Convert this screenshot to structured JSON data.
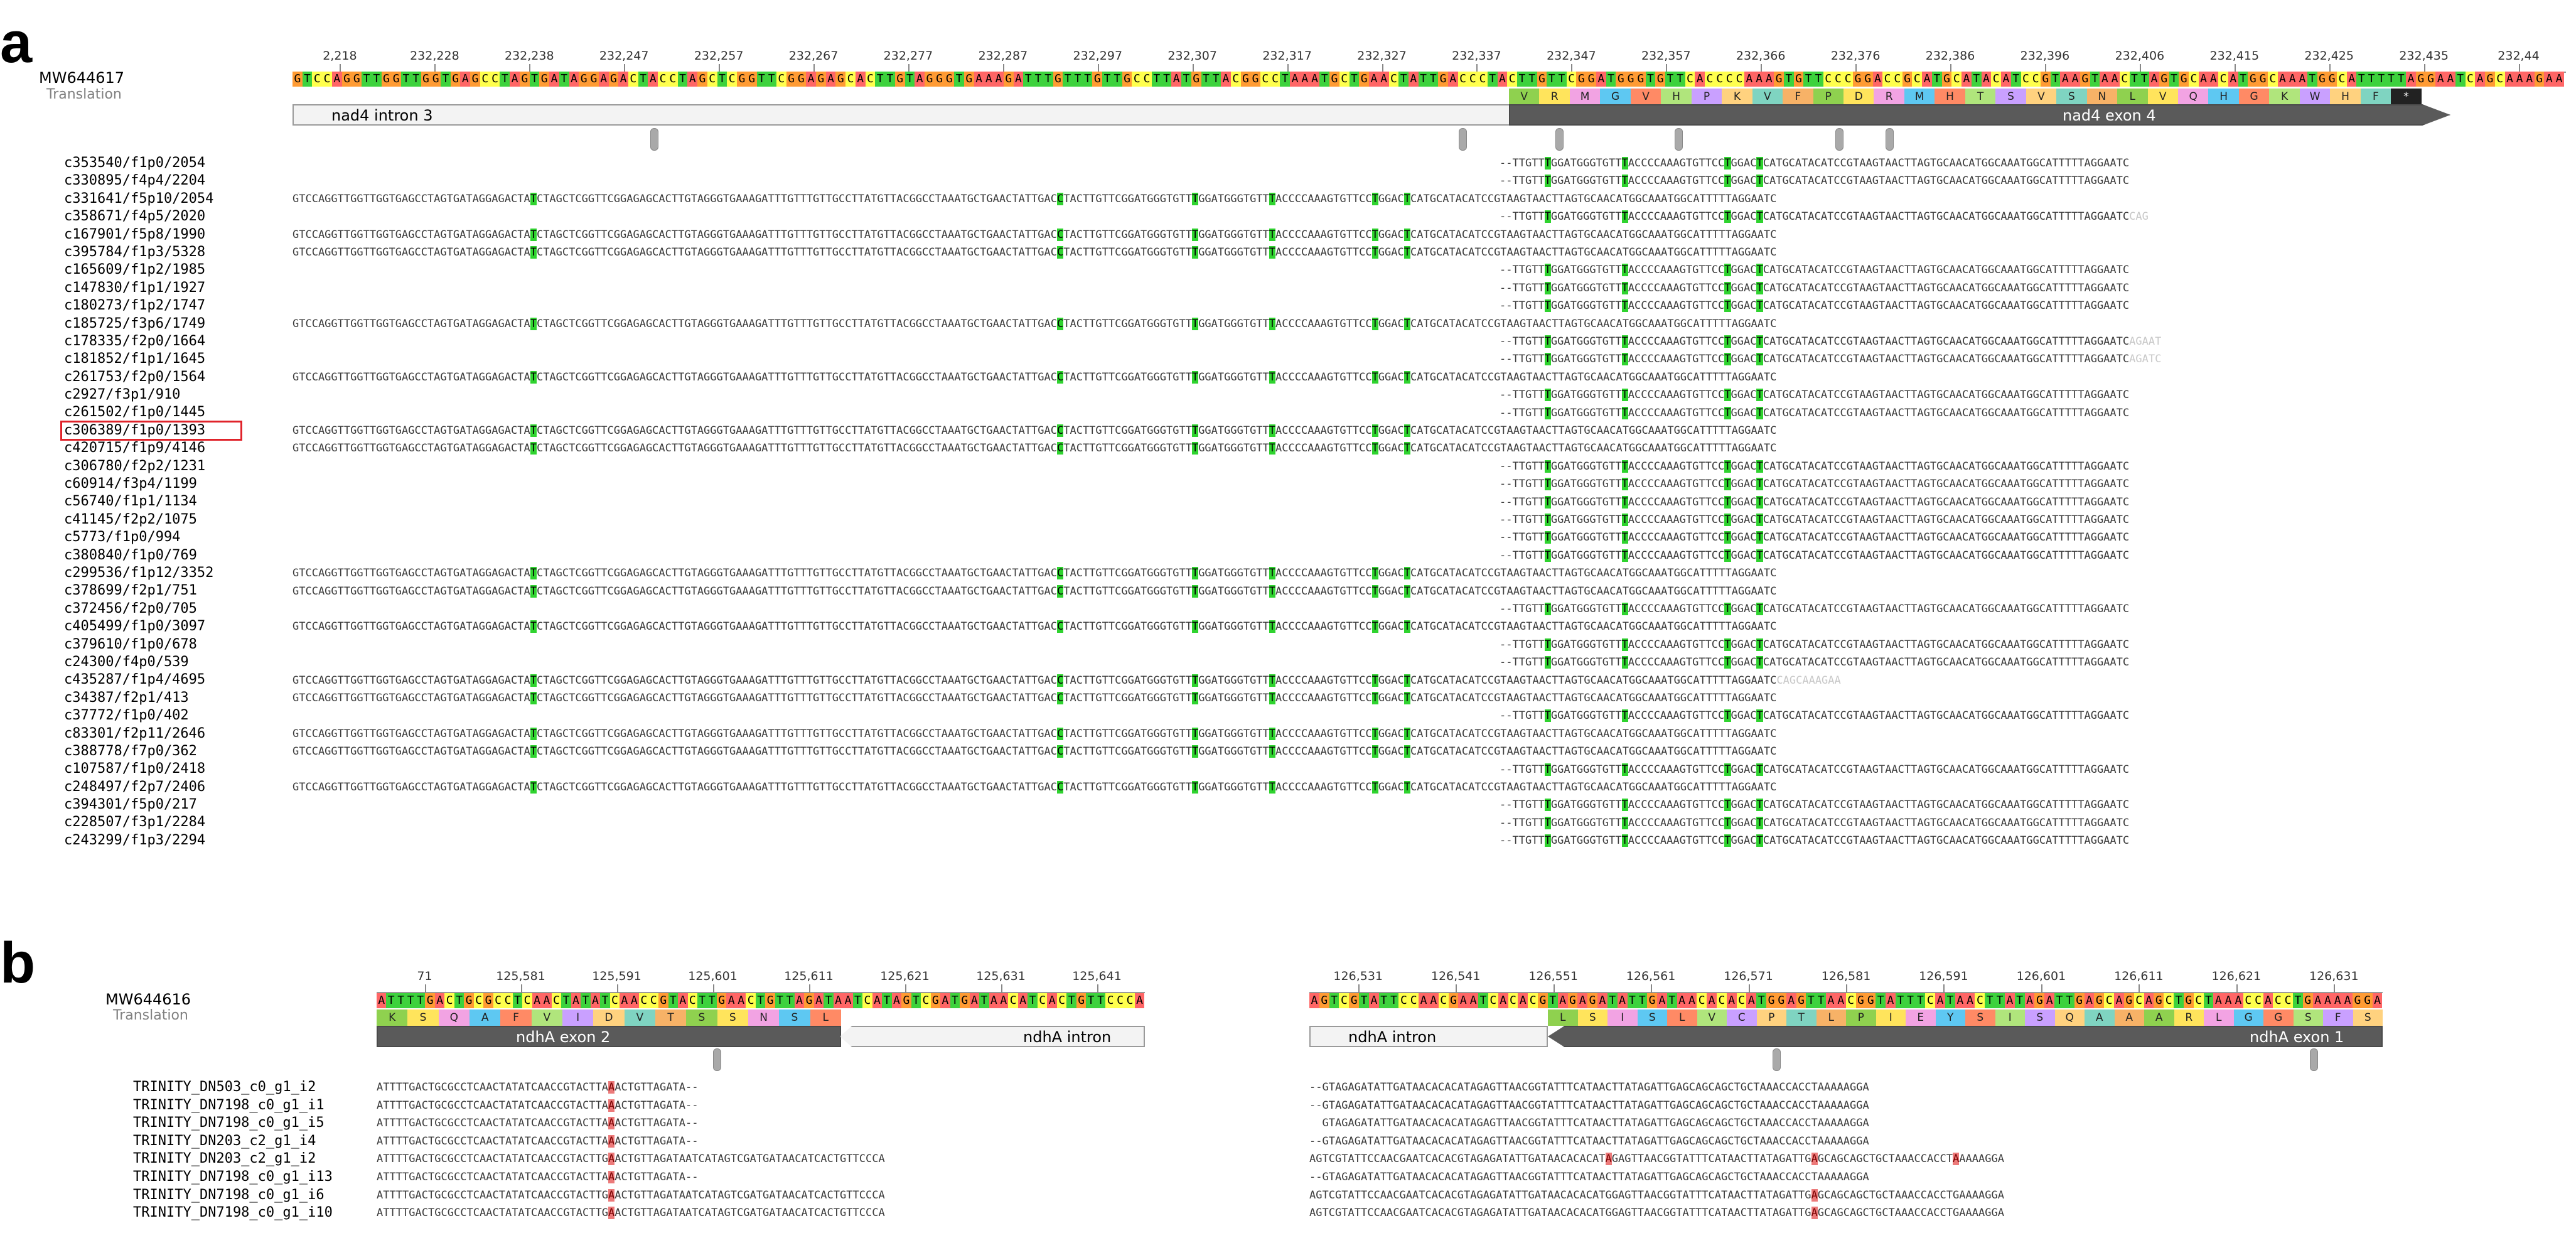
{
  "colors": {
    "A": "#ff6666",
    "C": "#ffff4d",
    "G": "#ff9b33",
    "T": "#3dd23d",
    "match_highlight": "#2fd32f",
    "mismatch_highlight": "#ec7a7a",
    "feature_light": "#f3f3f3",
    "feature_dark": "#5a5a5a",
    "highlight_box": "#e0232a"
  },
  "panel_a": {
    "letter": "a",
    "reference_name": "MW644617",
    "translation_label": "Translation",
    "ruler_labels": [
      "2,218",
      "232,228",
      "232,238",
      "232,247",
      "232,257",
      "232,267",
      "232,277",
      "232,287",
      "232,297",
      "232,307",
      "232,317",
      "232,327",
      "232,337",
      "232,347",
      "232,357",
      "232,366",
      "232,376",
      "232,386",
      "232,396",
      "232,406",
      "232,415",
      "232,425",
      "232,435",
      "232,44"
    ],
    "reference_sequence": "GTCCAGGTTGGTTGGTGAGCCTAGTGATAGGAGACTACCTAGCTCGGTTCGGAGAGCACTTGTAGGGTGAAAGATTTGTTTGTTGCCTTATGTTACGGCCTAAATGCTGAACTATTGACCCTACTTGTTCGGATGGGTGTTCACCCCAAAGTGTTCCCGGACCGCATGCATACATCCGTAAGTAACTTAGTGCAACATGGCAAATGGCATTTTTAGGAATCAGCAAAGAA",
    "translation": [
      "V",
      "R",
      "M",
      "G",
      "V",
      "H",
      "P",
      "K",
      "V",
      "F",
      "P",
      "D",
      "R",
      "M",
      "H",
      "T",
      "S",
      "V",
      "S",
      "N",
      "L",
      "V",
      "Q",
      "H",
      "G",
      "K",
      "W",
      "H",
      "F",
      "*"
    ],
    "features": [
      {
        "label": "nad4 intron 3"
      },
      {
        "label": "nad4 exon 4"
      }
    ],
    "reads": [
      {
        "name": "c353540/f1p0/2054",
        "kind": "partial",
        "tail": ""
      },
      {
        "name": "c330895/f4p4/2204",
        "kind": "partial",
        "tail": ""
      },
      {
        "name": "c331641/f5p10/2054",
        "kind": "full",
        "tail": ""
      },
      {
        "name": "c358671/f4p5/2020",
        "kind": "partial",
        "tail": "CAG"
      },
      {
        "name": "c167901/f5p8/1990",
        "kind": "full",
        "tail": ""
      },
      {
        "name": "c395784/f1p3/5328",
        "kind": "full",
        "tail": ""
      },
      {
        "name": "c165609/f1p2/1985",
        "kind": "partial",
        "tail": ""
      },
      {
        "name": "c147830/f1p1/1927",
        "kind": "partial",
        "tail": ""
      },
      {
        "name": "c180273/f1p2/1747",
        "kind": "partial",
        "tail": ""
      },
      {
        "name": "c185725/f3p6/1749",
        "kind": "full",
        "tail": ""
      },
      {
        "name": "c178335/f2p0/1664",
        "kind": "partial",
        "tail": "AGAAT"
      },
      {
        "name": "c181852/f1p1/1645",
        "kind": "partial",
        "tail": "AGATC"
      },
      {
        "name": "c261753/f2p0/1564",
        "kind": "full",
        "tail": ""
      },
      {
        "name": "c2927/f3p1/910",
        "kind": "partial",
        "tail": ""
      },
      {
        "name": "c261502/f1p0/1445",
        "kind": "partial",
        "tail": ""
      },
      {
        "name": "c306389/f1p0/1393",
        "kind": "full",
        "tail": "",
        "boxed": true
      },
      {
        "name": "c420715/f1p9/4146",
        "kind": "full",
        "tail": ""
      },
      {
        "name": "c306780/f2p2/1231",
        "kind": "partial",
        "tail": ""
      },
      {
        "name": "c60914/f3p4/1199",
        "kind": "partial",
        "tail": ""
      },
      {
        "name": "c56740/f1p1/1134",
        "kind": "partial",
        "tail": ""
      },
      {
        "name": "c41145/f2p2/1075",
        "kind": "partial",
        "tail": ""
      },
      {
        "name": "c5773/f1p0/994",
        "kind": "partial",
        "tail": ""
      },
      {
        "name": "c380840/f1p0/769",
        "kind": "partial",
        "tail": ""
      },
      {
        "name": "c299536/f1p12/3352",
        "kind": "full",
        "tail": ""
      },
      {
        "name": "c378699/f2p1/751",
        "kind": "full",
        "tail": ""
      },
      {
        "name": "c372456/f2p0/705",
        "kind": "partial",
        "tail": ""
      },
      {
        "name": "c405499/f1p0/3097",
        "kind": "full",
        "tail": ""
      },
      {
        "name": "c379610/f1p0/678",
        "kind": "partial",
        "tail": ""
      },
      {
        "name": "c24300/f4p0/539",
        "kind": "partial",
        "tail": ""
      },
      {
        "name": "c435287/f1p4/4695",
        "kind": "full",
        "tail": "CAGCAAAGAA"
      },
      {
        "name": "c34387/f2p1/413",
        "kind": "full",
        "tail": ""
      },
      {
        "name": "c37772/f1p0/402",
        "kind": "partial",
        "tail": ""
      },
      {
        "name": "c83301/f2p11/2646",
        "kind": "full",
        "tail": ""
      },
      {
        "name": "c388778/f7p0/362",
        "kind": "full",
        "tail": ""
      },
      {
        "name": "c107587/f1p0/2418",
        "kind": "partial",
        "tail": ""
      },
      {
        "name": "c248497/f2p7/2406",
        "kind": "full",
        "tail": ""
      },
      {
        "name": "c394301/f5p0/217",
        "kind": "partial",
        "tail": ""
      },
      {
        "name": "c228507/f3p1/2284",
        "kind": "partial",
        "tail": ""
      },
      {
        "name": "c243299/f1p3/2294",
        "kind": "partial",
        "tail": ""
      }
    ],
    "read_segments": {
      "intron": "GTCCAGGTTGGTTGGTGAGCCTAGTGATAGGAGACTA",
      "intron_mark": "T",
      "intron_mid": "CTAGCTCGGTTCGGAGAGCACTTGTAGGGTGAAAGATTTGTTTGTTGCCTTATGTTACGGCCTAAATGCTGAACTATTGAC",
      "junction_mark": "C",
      "junction_rest": "TACTTGTTCGGATGGGTGTT",
      "partial_lead": "--TTGTT",
      "edit1_mark": "T",
      "exon_a": "GGATGGGTGTT",
      "edit2_mark": "T",
      "exon_b": "ACCCCAAAGTGTTCC",
      "edit3_mark": "T",
      "exon_c": "GGAC",
      "edit4_mark": "T",
      "exon_d": "CATGCATACATCCGTAAGTAACTTAGTGCAACATGGCAAATGGCATTTTTAGGAATC"
    }
  },
  "panel_b": {
    "letter": "b",
    "reference_name": "MW644616",
    "translation_label": "Translation",
    "left": {
      "ruler_labels": [
        "71",
        "125,581",
        "125,591",
        "125,601",
        "125,611",
        "125,621",
        "125,631",
        "125,641"
      ],
      "reference_sequence": "ATTTTGACTGCGCCTCAACTATATCAACCGTACTTGAACTGTTAGATAATCATAGTCGATGATAACATCACTGTTCCCA",
      "translation": [
        "K",
        "S",
        "Q",
        "A",
        "F",
        "V",
        "I",
        "D",
        "V",
        "T",
        "S",
        "S",
        "N",
        "S",
        "L"
      ],
      "features": [
        {
          "label": "ndhA exon 2"
        },
        {
          "label": "ndhA intron"
        }
      ],
      "reads": [
        "ATTTTGACTGCGCCTCAACTATATCAACCGTACTTAAACTGTTAGATA--",
        "ATTTTGACTGCGCCTCAACTATATCAACCGTACTTAAACTGTTAGATA--",
        "ATTTTGACTGCGCCTCAACTATATCAACCGTACTTAAACTGTTAGATA--",
        "ATTTTGACTGCGCCTCAACTATATCAACCGTACTTAAACTGTTAGATA--",
        "ATTTTGACTGCGCCTCAACTATATCAACCGTACTTGAACTGTTAGATAATCATAGTCGATGATAACATCACTGTTCCCA",
        "ATTTTGACTGCGCCTCAACTATATCAACCGTACTTAAACTGTTAGATA--",
        "ATTTTGACTGCGCCTCAACTATATCAACCGTACTTGAACTGTTAGATAATCATAGTCGATGATAACATCACTGTTCCCA",
        "ATTTTGACTGCGCCTCAACTATATCAACCGTACTTGAACTGTTAGATAATCATAGTCGATGATAACATCACTGTTCCCA"
      ]
    },
    "right": {
      "ruler_labels": [
        "126,531",
        "126,541",
        "126,551",
        "126,561",
        "126,571",
        "126,581",
        "126,591",
        "126,601",
        "126,611",
        "126,621",
        "126,631"
      ],
      "reference_sequence": "AGTCGTATTCCAACGAATCACACGTAGAGATATTGATAACACACATGGAGTTAACGGTATTTCATAACTTATAGATTGAGCAGCAGCTGCTAAACCACCTGAAAAGGA",
      "translation": [
        "L",
        "S",
        "I",
        "S",
        "L",
        "V",
        "C",
        "P",
        "T",
        "L",
        "P",
        "I",
        "E",
        "Y",
        "S",
        "I",
        "S",
        "Q",
        "A",
        "A",
        "A",
        "R",
        "L",
        "G",
        "G",
        "S",
        "F",
        "S"
      ],
      "features": [
        {
          "label": "ndhA intron"
        },
        {
          "label": "ndhA exon 1"
        }
      ],
      "reads": [
        "--GTAGAGATATTGATAACACACATAGAGTTAACGGTATTTCATAACTTATAGATTGAGCAGCAGCTGCTAAACCACCTAAAAAGGA",
        "--GTAGAGATATTGATAACACACATAGAGTTAACGGTATTTCATAACTTATAGATTGAGCAGCAGCTGCTAAACCACCTAAAAAGGA",
        "  GTAGAGATATTGATAACACACATAGAGTTAACGGTATTTCATAACTTATAGATTGAGCAGCAGCTGCTAAACCACCTAAAAAGGA",
        "--GTAGAGATATTGATAACACACATAGAGTTAACGGTATTTCATAACTTATAGATTGAGCAGCAGCTGCTAAACCACCTAAAAAGGA",
        "AGTCGTATTCCAACGAATCACACGTAGAGATATTGATAACACACATAGAGTTAACGGTATTTCATAACTTATAGATTGAGCAGCAGCTGCTAAACCACCTAAAAAGGA",
        "--GTAGAGATATTGATAACACACATAGAGTTAACGGTATTTCATAACTTATAGATTGAGCAGCAGCTGCTAAACCACCTAAAAAGGA",
        "AGTCGTATTCCAACGAATCACACGTAGAGATATTGATAACACACATGGAGTTAACGGTATTTCATAACTTATAGATTGAGCAGCAGCTGCTAAACCACCTGAAAAGGA",
        "AGTCGTATTCCAACGAATCACACGTAGAGATATTGATAACACACATGGAGTTAACGGTATTTCATAACTTATAGATTGAGCAGCAGCTGCTAAACCACCTGAAAAGGA"
      ]
    },
    "read_names": [
      "TRINITY_DN503_c0_g1_i2",
      "TRINITY_DN7198_c0_g1_i1",
      "TRINITY_DN7198_c0_g1_i5",
      "TRINITY_DN203_c2_g1_i4",
      "TRINITY_DN203_c2_g1_i2",
      "TRINITY_DN7198_c0_g1_i13",
      "TRINITY_DN7198_c0_g1_i6",
      "TRINITY_DN7198_c0_g1_i10"
    ]
  }
}
